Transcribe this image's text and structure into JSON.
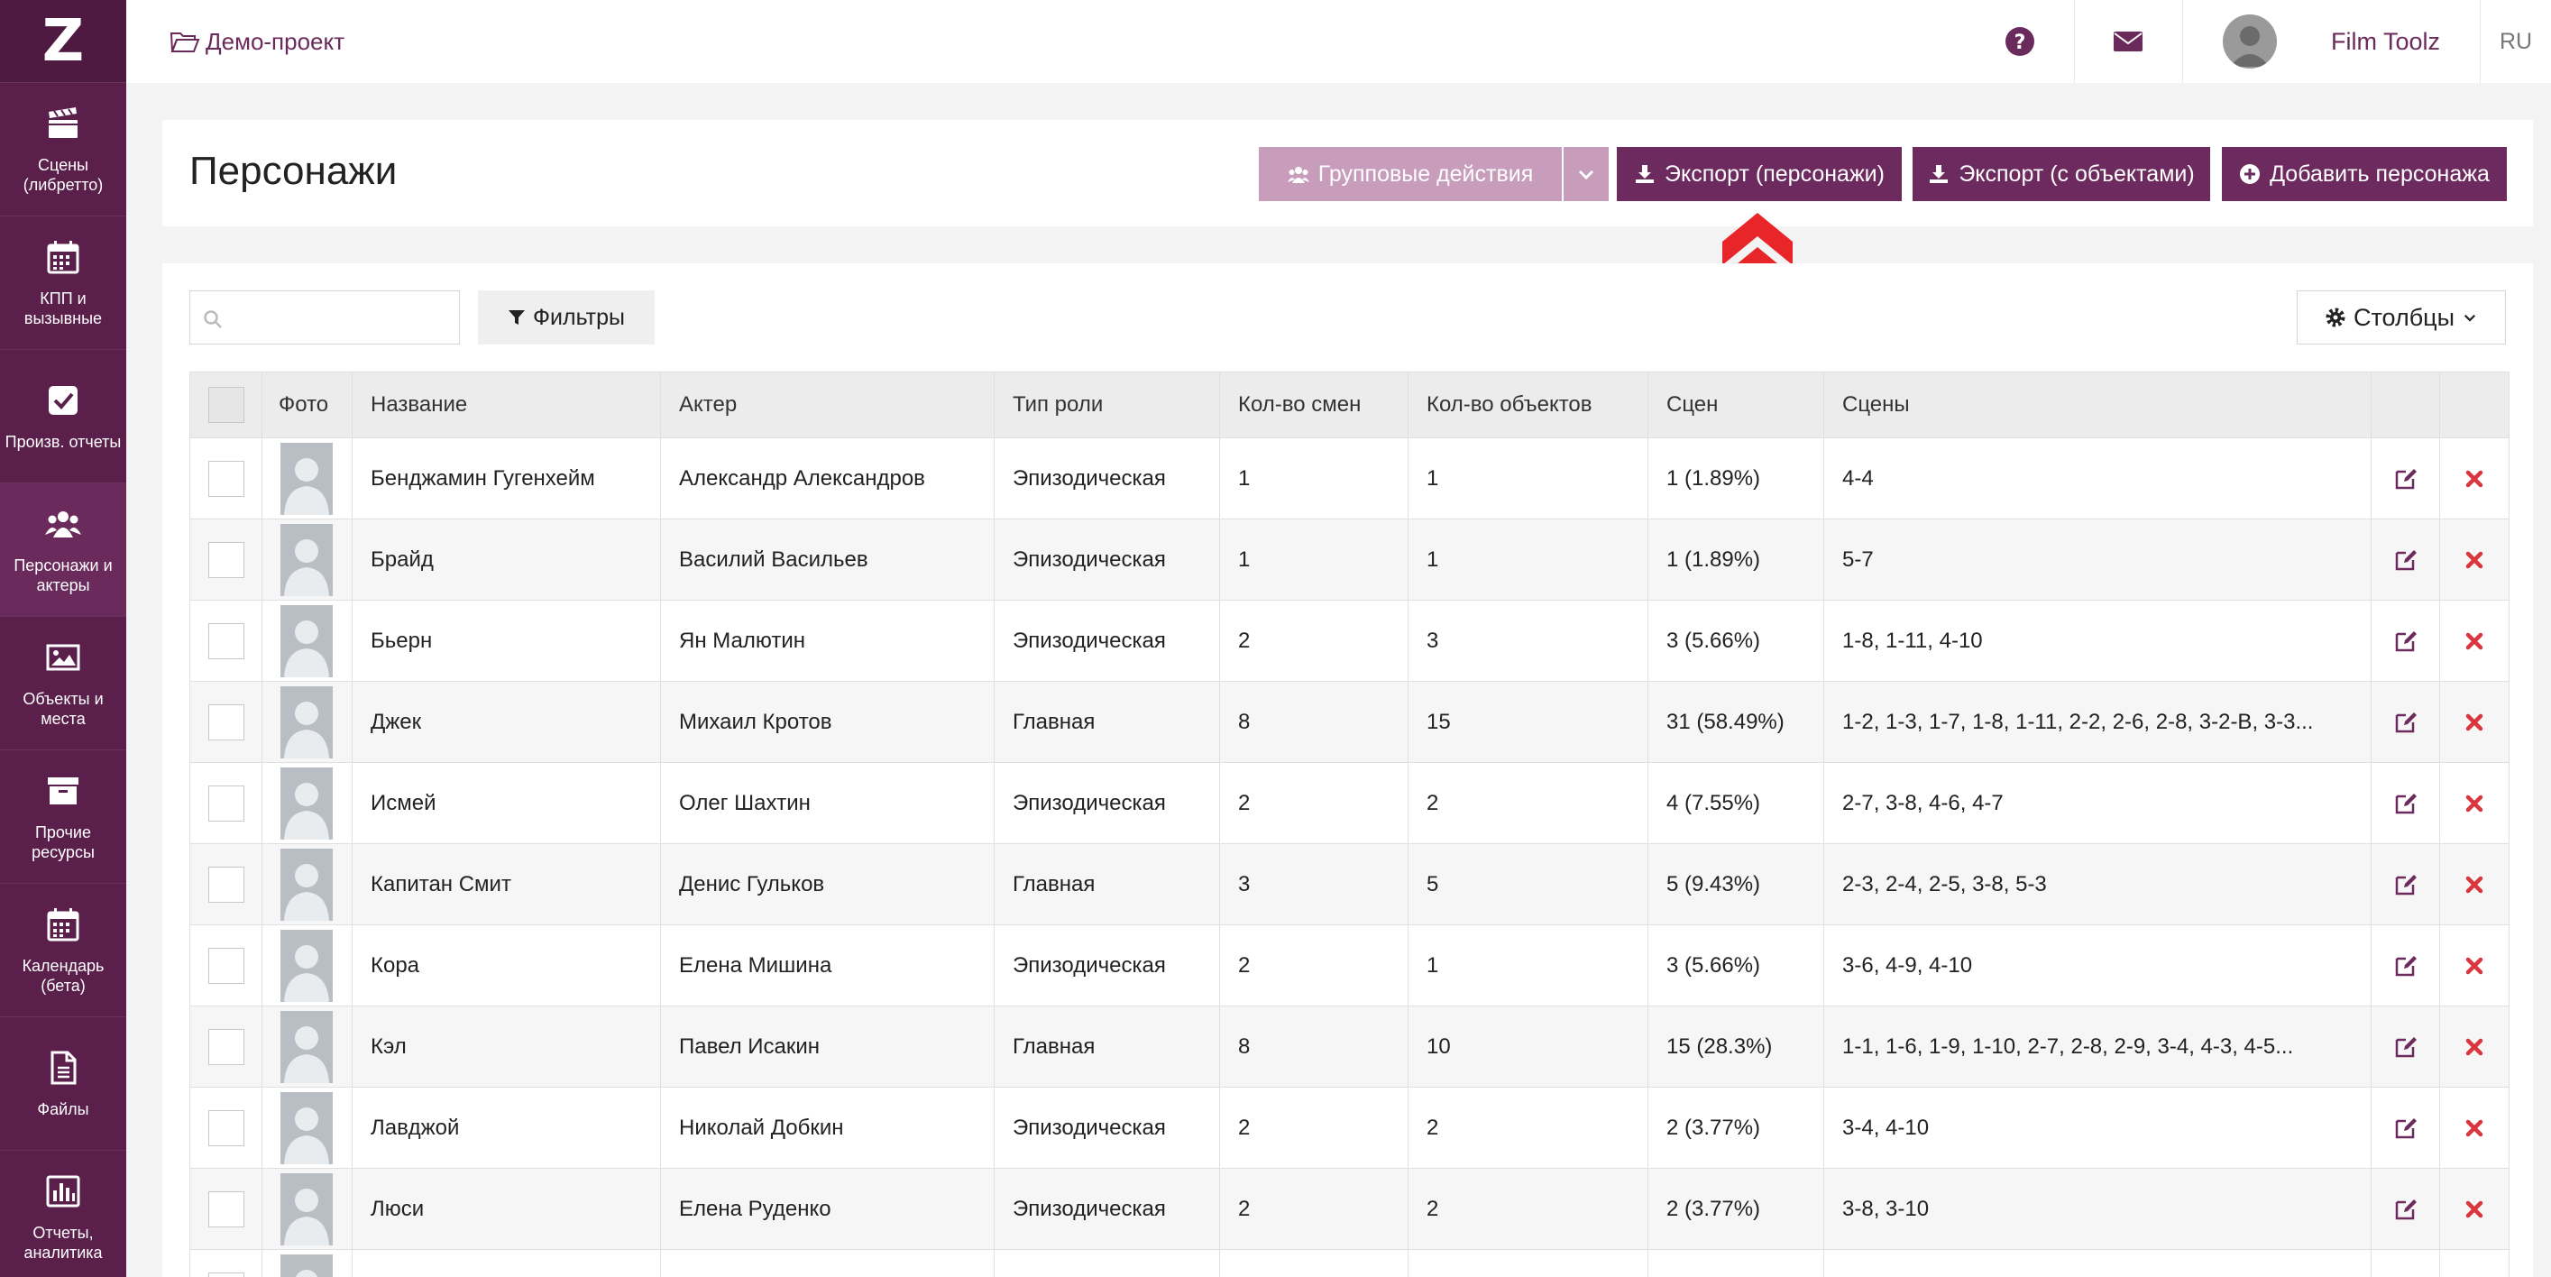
{
  "sidebar": {
    "logo": "Z",
    "items": [
      {
        "label": "Сцены\n(либретто)",
        "icon": "clapperboard-icon"
      },
      {
        "label": "КПП и\nвызывные",
        "icon": "calendar-icon"
      },
      {
        "label": "Произв. отчеты",
        "icon": "checkbox-icon"
      },
      {
        "label": "Персонажи и\nактеры",
        "icon": "users-icon"
      },
      {
        "label": "Объекты и\nместа",
        "icon": "image-icon"
      },
      {
        "label": "Прочие\nресурсы",
        "icon": "archive-icon"
      },
      {
        "label": "Календарь\n(бета)",
        "icon": "calendar-icon"
      },
      {
        "label": "Файлы",
        "icon": "file-icon"
      },
      {
        "label": "Отчеты,\nаналитика",
        "icon": "bar-chart-icon"
      }
    ]
  },
  "topbar": {
    "project": "Демо-проект",
    "user_name": "Film Toolz",
    "lang": "RU"
  },
  "header": {
    "title": "Персонажи",
    "group_actions": "Групповые действия",
    "export_characters": "Экспорт (персонажи)",
    "export_objects": "Экспорт (с объектами)",
    "add_character": "Добавить персонажа"
  },
  "toolbar": {
    "search_value": "",
    "filters": "Фильтры",
    "columns": "Столбцы"
  },
  "table": {
    "headers": [
      "Фото",
      "Название",
      "Актер",
      "Тип роли",
      "Кол-во смен",
      "Кол-во объектов",
      "Сцен",
      "Сцены"
    ],
    "rows": [
      {
        "name": "Бенджамин Гугенхейм",
        "actor": "Александр Александров",
        "role": "Эпизодическая",
        "shifts": "1",
        "objects": "1",
        "scenes_count": "1 (1.89%)",
        "scenes": "4-4"
      },
      {
        "name": "Брайд",
        "actor": "Василий Васильев",
        "role": "Эпизодическая",
        "shifts": "1",
        "objects": "1",
        "scenes_count": "1 (1.89%)",
        "scenes": "5-7"
      },
      {
        "name": "Бьерн",
        "actor": "Ян Малютин",
        "role": "Эпизодическая",
        "shifts": "2",
        "objects": "3",
        "scenes_count": "3 (5.66%)",
        "scenes": "1-8, 1-11, 4-10"
      },
      {
        "name": "Джек",
        "actor": "Михаил Кротов",
        "role": "Главная",
        "shifts": "8",
        "objects": "15",
        "scenes_count": "31 (58.49%)",
        "scenes": "1-2, 1-3, 1-7, 1-8, 1-11, 2-2, 2-6, 2-8, 3-2-В, 3-3..."
      },
      {
        "name": "Исмей",
        "actor": "Олег Шахтин",
        "role": "Эпизодическая",
        "shifts": "2",
        "objects": "2",
        "scenes_count": "4 (7.55%)",
        "scenes": "2-7, 3-8, 4-6, 4-7"
      },
      {
        "name": "Капитан Смит",
        "actor": "Денис Гульков",
        "role": "Главная",
        "shifts": "3",
        "objects": "5",
        "scenes_count": "5 (9.43%)",
        "scenes": "2-3, 2-4, 2-5, 3-8, 5-3"
      },
      {
        "name": "Кора",
        "actor": "Елена Мишина",
        "role": "Эпизодическая",
        "shifts": "2",
        "objects": "1",
        "scenes_count": "3 (5.66%)",
        "scenes": "3-6, 4-9, 4-10"
      },
      {
        "name": "Кэл",
        "actor": "Павел Исакин",
        "role": "Главная",
        "shifts": "8",
        "objects": "10",
        "scenes_count": "15 (28.3%)",
        "scenes": "1-1, 1-6, 1-9, 1-10, 2-7, 2-8, 2-9, 3-4, 4-3, 4-5..."
      },
      {
        "name": "Лавджой",
        "actor": "Николай Добкин",
        "role": "Эпизодическая",
        "shifts": "2",
        "objects": "2",
        "scenes_count": "2 (3.77%)",
        "scenes": "3-4, 4-10"
      },
      {
        "name": "Люси",
        "actor": "Елена Руденко",
        "role": "Эпизодическая",
        "shifts": "2",
        "objects": "2",
        "scenes_count": "2 (3.77%)",
        "scenes": "3-8, 3-10"
      },
      {
        "name": "",
        "actor": "",
        "role": "",
        "shifts": "",
        "objects": "",
        "scenes_count": "",
        "scenes": ""
      }
    ]
  },
  "colors": {
    "sidebar": "#5a1f4a",
    "accent": "#6d2a5f",
    "accent_light": "#c79dbb",
    "delete": "#d9363e",
    "arrow": "#e8262a"
  }
}
